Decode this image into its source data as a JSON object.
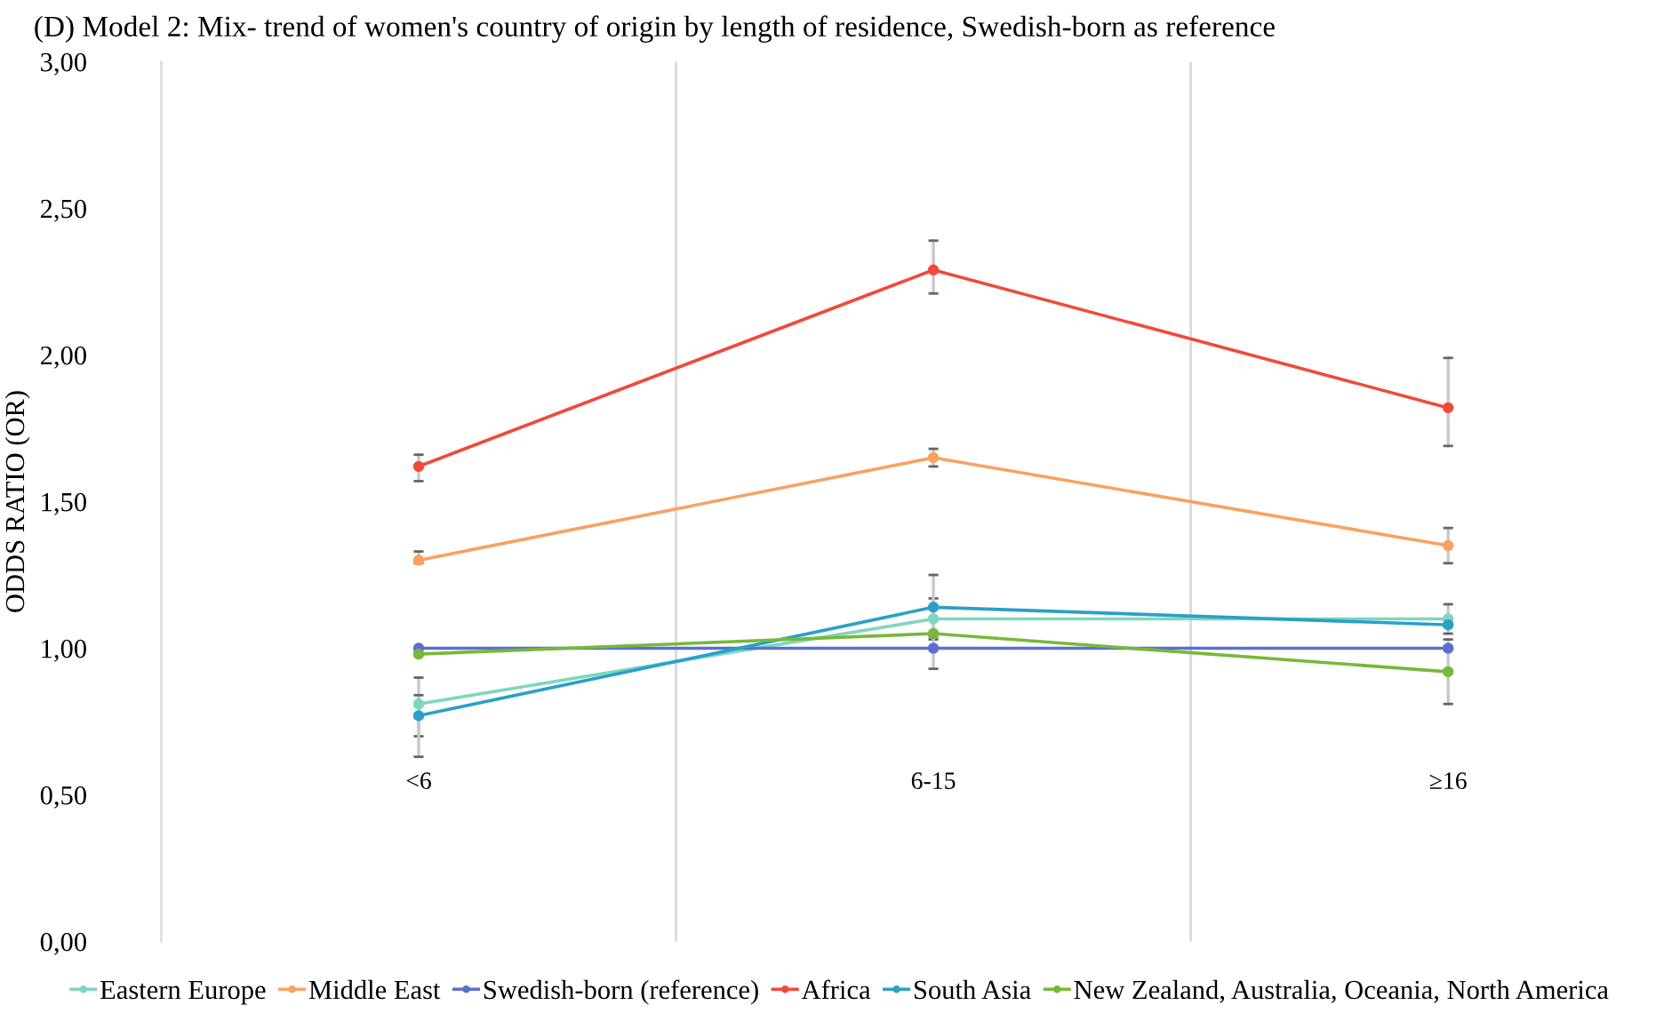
{
  "chart_data": {
    "type": "line",
    "title": "(D) Model 2: Mix- trend of women's country of origin by length of residence, Swedish-born as reference",
    "ylabel": "ODDS RATIO (OR)",
    "categories": [
      "<6",
      "6-15",
      "≥16"
    ],
    "series": [
      {
        "name": "Eastern Europe",
        "color": "#7fd6bf",
        "values": [
          0.81,
          1.1,
          1.1
        ],
        "errors": [
          [
            0.7,
            0.9
          ],
          [
            1.04,
            1.17
          ],
          [
            1.05,
            1.15
          ]
        ]
      },
      {
        "name": "Middle East",
        "color": "#f7a261",
        "values": [
          1.3,
          1.65,
          1.35
        ],
        "errors": [
          [
            1.29,
            1.33
          ],
          [
            1.62,
            1.68
          ],
          [
            1.29,
            1.41
          ]
        ]
      },
      {
        "name": "Swedish-born (reference)",
        "color": "#5b6fcf",
        "values": [
          1.0,
          1.0,
          1.0
        ]
      },
      {
        "name": "Africa",
        "color": "#f04a3a",
        "values": [
          1.62,
          2.29,
          1.82
        ],
        "errors": [
          [
            1.57,
            1.66
          ],
          [
            2.21,
            2.39
          ],
          [
            1.69,
            1.99
          ]
        ]
      },
      {
        "name": "South Asia",
        "color": "#2aa0c8",
        "values": [
          0.77,
          1.14,
          1.08
        ],
        "errors": [
          [
            0.63,
            0.84
          ],
          [
            1.03,
            1.25
          ],
          null
        ]
      },
      {
        "name": "New Zealand, Australia, Oceania, North America",
        "color": "#78b83a",
        "values": [
          0.98,
          1.05,
          0.92
        ],
        "errors": [
          null,
          [
            0.93,
            1.1
          ],
          [
            0.81,
            1.03
          ]
        ]
      }
    ],
    "ylim": [
      0,
      3
    ],
    "yticks": [
      {
        "value": 0,
        "label": "0,00"
      },
      {
        "value": 0.5,
        "label": "0,50"
      },
      {
        "value": 1,
        "label": "1,00"
      },
      {
        "value": 1.5,
        "label": "1,50"
      },
      {
        "value": 2,
        "label": "2,00"
      },
      {
        "value": 2.5,
        "label": "2,50"
      },
      {
        "value": 3,
        "label": "3,00"
      }
    ],
    "grid": "x",
    "legend": "bottom",
    "marker": "circle",
    "line_style": "solid"
  }
}
